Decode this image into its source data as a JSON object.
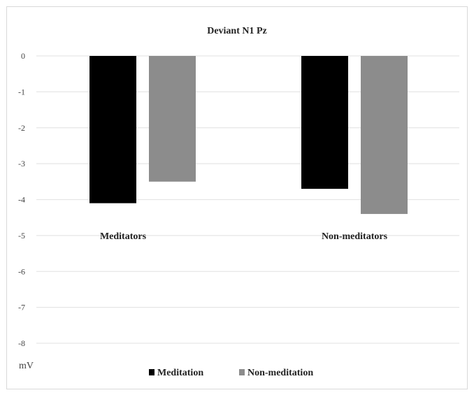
{
  "chart_data": {
    "type": "bar",
    "title": "Deviant N1 Pz",
    "categories": [
      "Meditators",
      "Non-meditators"
    ],
    "series": [
      {
        "name": "Meditation",
        "values": [
          -4.1,
          -3.7
        ],
        "color": "#000000"
      },
      {
        "name": "Non-meditation",
        "values": [
          -3.5,
          -4.4
        ],
        "color": "#8c8c8c"
      }
    ],
    "ylabel": "mV",
    "ylim": [
      -8,
      0
    ],
    "yticks": [
      "0",
      "-1",
      "-2",
      "-3",
      "-4",
      "-5",
      "-6",
      "-7",
      "-8"
    ],
    "grid": true,
    "legend": "bottom"
  }
}
